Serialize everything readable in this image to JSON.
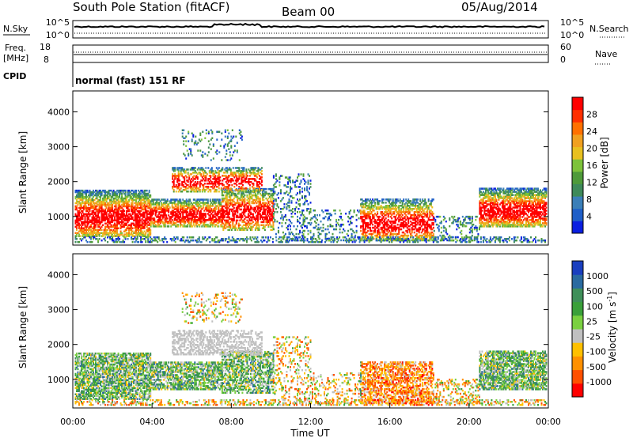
{
  "header": {
    "title": "South Pole Station (fitACF)",
    "beam": "Beam 00",
    "date": "05/Aug/2014"
  },
  "panels": {
    "nsky": {
      "label": "N.Sky",
      "top_tick": "10^5",
      "bottom_tick": "10^0",
      "right_top": "10^5",
      "right_bottom": "10^0",
      "right_label": "N.Search"
    },
    "freq": {
      "label_1": "Freq.",
      "label_2": "[MHz]",
      "top_tick": "18",
      "bottom_tick": "8",
      "right_top": "60",
      "right_bottom": "0",
      "right_label": "Nave"
    },
    "cpid": {
      "label": "CPID",
      "text": "normal (fast) 151 RF"
    }
  },
  "chart_data": [
    {
      "type": "heatmap",
      "name": "power",
      "ylabel": "Slant Range [km]",
      "ylim": [
        180,
        4600
      ],
      "yticks": [
        "1000",
        "2000",
        "3000",
        "4000"
      ],
      "xlim": [
        "00:00",
        "24:00"
      ],
      "colorbar": {
        "label": "Power [dB]",
        "range": [
          0,
          32
        ],
        "ticks": [
          "4",
          "8",
          "12",
          "16",
          "20",
          "24",
          "28"
        ],
        "colors": [
          "#0a1fe0",
          "#1f5fc8",
          "#3b7fb8",
          "#3e8a5a",
          "#4e9a3a",
          "#7dc23a",
          "#e8c020",
          "#f0a020",
          "#ff7000",
          "#ff3000",
          "#ff0000"
        ]
      }
    },
    {
      "type": "heatmap",
      "name": "velocity",
      "ylabel": "Slant Range [km]",
      "ylim": [
        180,
        4600
      ],
      "yticks": [
        "1000",
        "2000",
        "3000",
        "4000"
      ],
      "xlim": [
        "00:00",
        "24:00"
      ],
      "xticks": [
        "00:00",
        "04:00",
        "08:00",
        "12:00",
        "16:00",
        "20:00",
        "00:00"
      ],
      "xlabel": "Time UT",
      "colorbar": {
        "label": "Velocity [m s^-1]",
        "ticks": [
          "1000",
          "500",
          "100",
          "25",
          "-25",
          "-100",
          "-500",
          "-1000"
        ],
        "colors": [
          "#1a3fbf",
          "#2a6aa0",
          "#3f8f5a",
          "#3aa03a",
          "#7ad040",
          "#c0c0c0",
          "#ffc000",
          "#ff9000",
          "#ff5000",
          "#ff0000"
        ]
      }
    }
  ]
}
